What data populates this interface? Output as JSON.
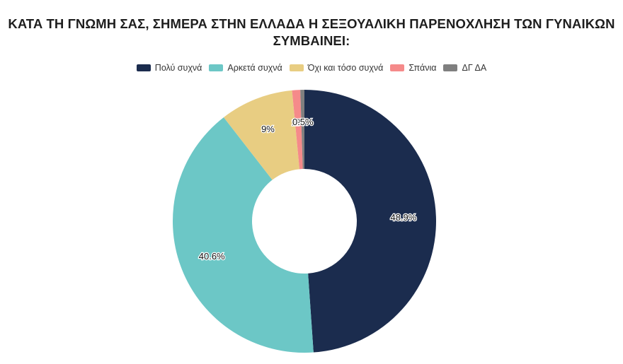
{
  "chart_data": {
    "type": "pie",
    "variant": "donut",
    "title_lines": [
      "ΚΑΤΑ ΤΗ ΓΝΩΜΗ ΣΑΣ, ΣΗΜΕΡΑ ΣΤΗΝ ΕΛΛΑΔΑ Η ΣΕΞΟΥΑΛΙΚΗ ΠΑΡΕΝΟΧΛΗΣΗ ΤΩΝ ΓΥΝΑΙΚΩΝ",
      "ΣΥΜΒΑΙΝΕΙ:"
    ],
    "legend_position": "top",
    "categories": [
      "Πολύ συχνά",
      "Αρκετά συχνά",
      "Όχι και τόσο συχνά",
      "Σπάνια",
      "ΔΓ ΔΑ"
    ],
    "values": [
      48.9,
      40.6,
      9.0,
      1.0,
      0.5
    ],
    "data_labels": [
      "48.9%",
      "40.6%",
      "9%",
      "1%",
      "0.5%"
    ],
    "colors": [
      "#1b2c4e",
      "#6cc7c6",
      "#e8cd82",
      "#f58a8a",
      "#7f7f7f"
    ]
  }
}
